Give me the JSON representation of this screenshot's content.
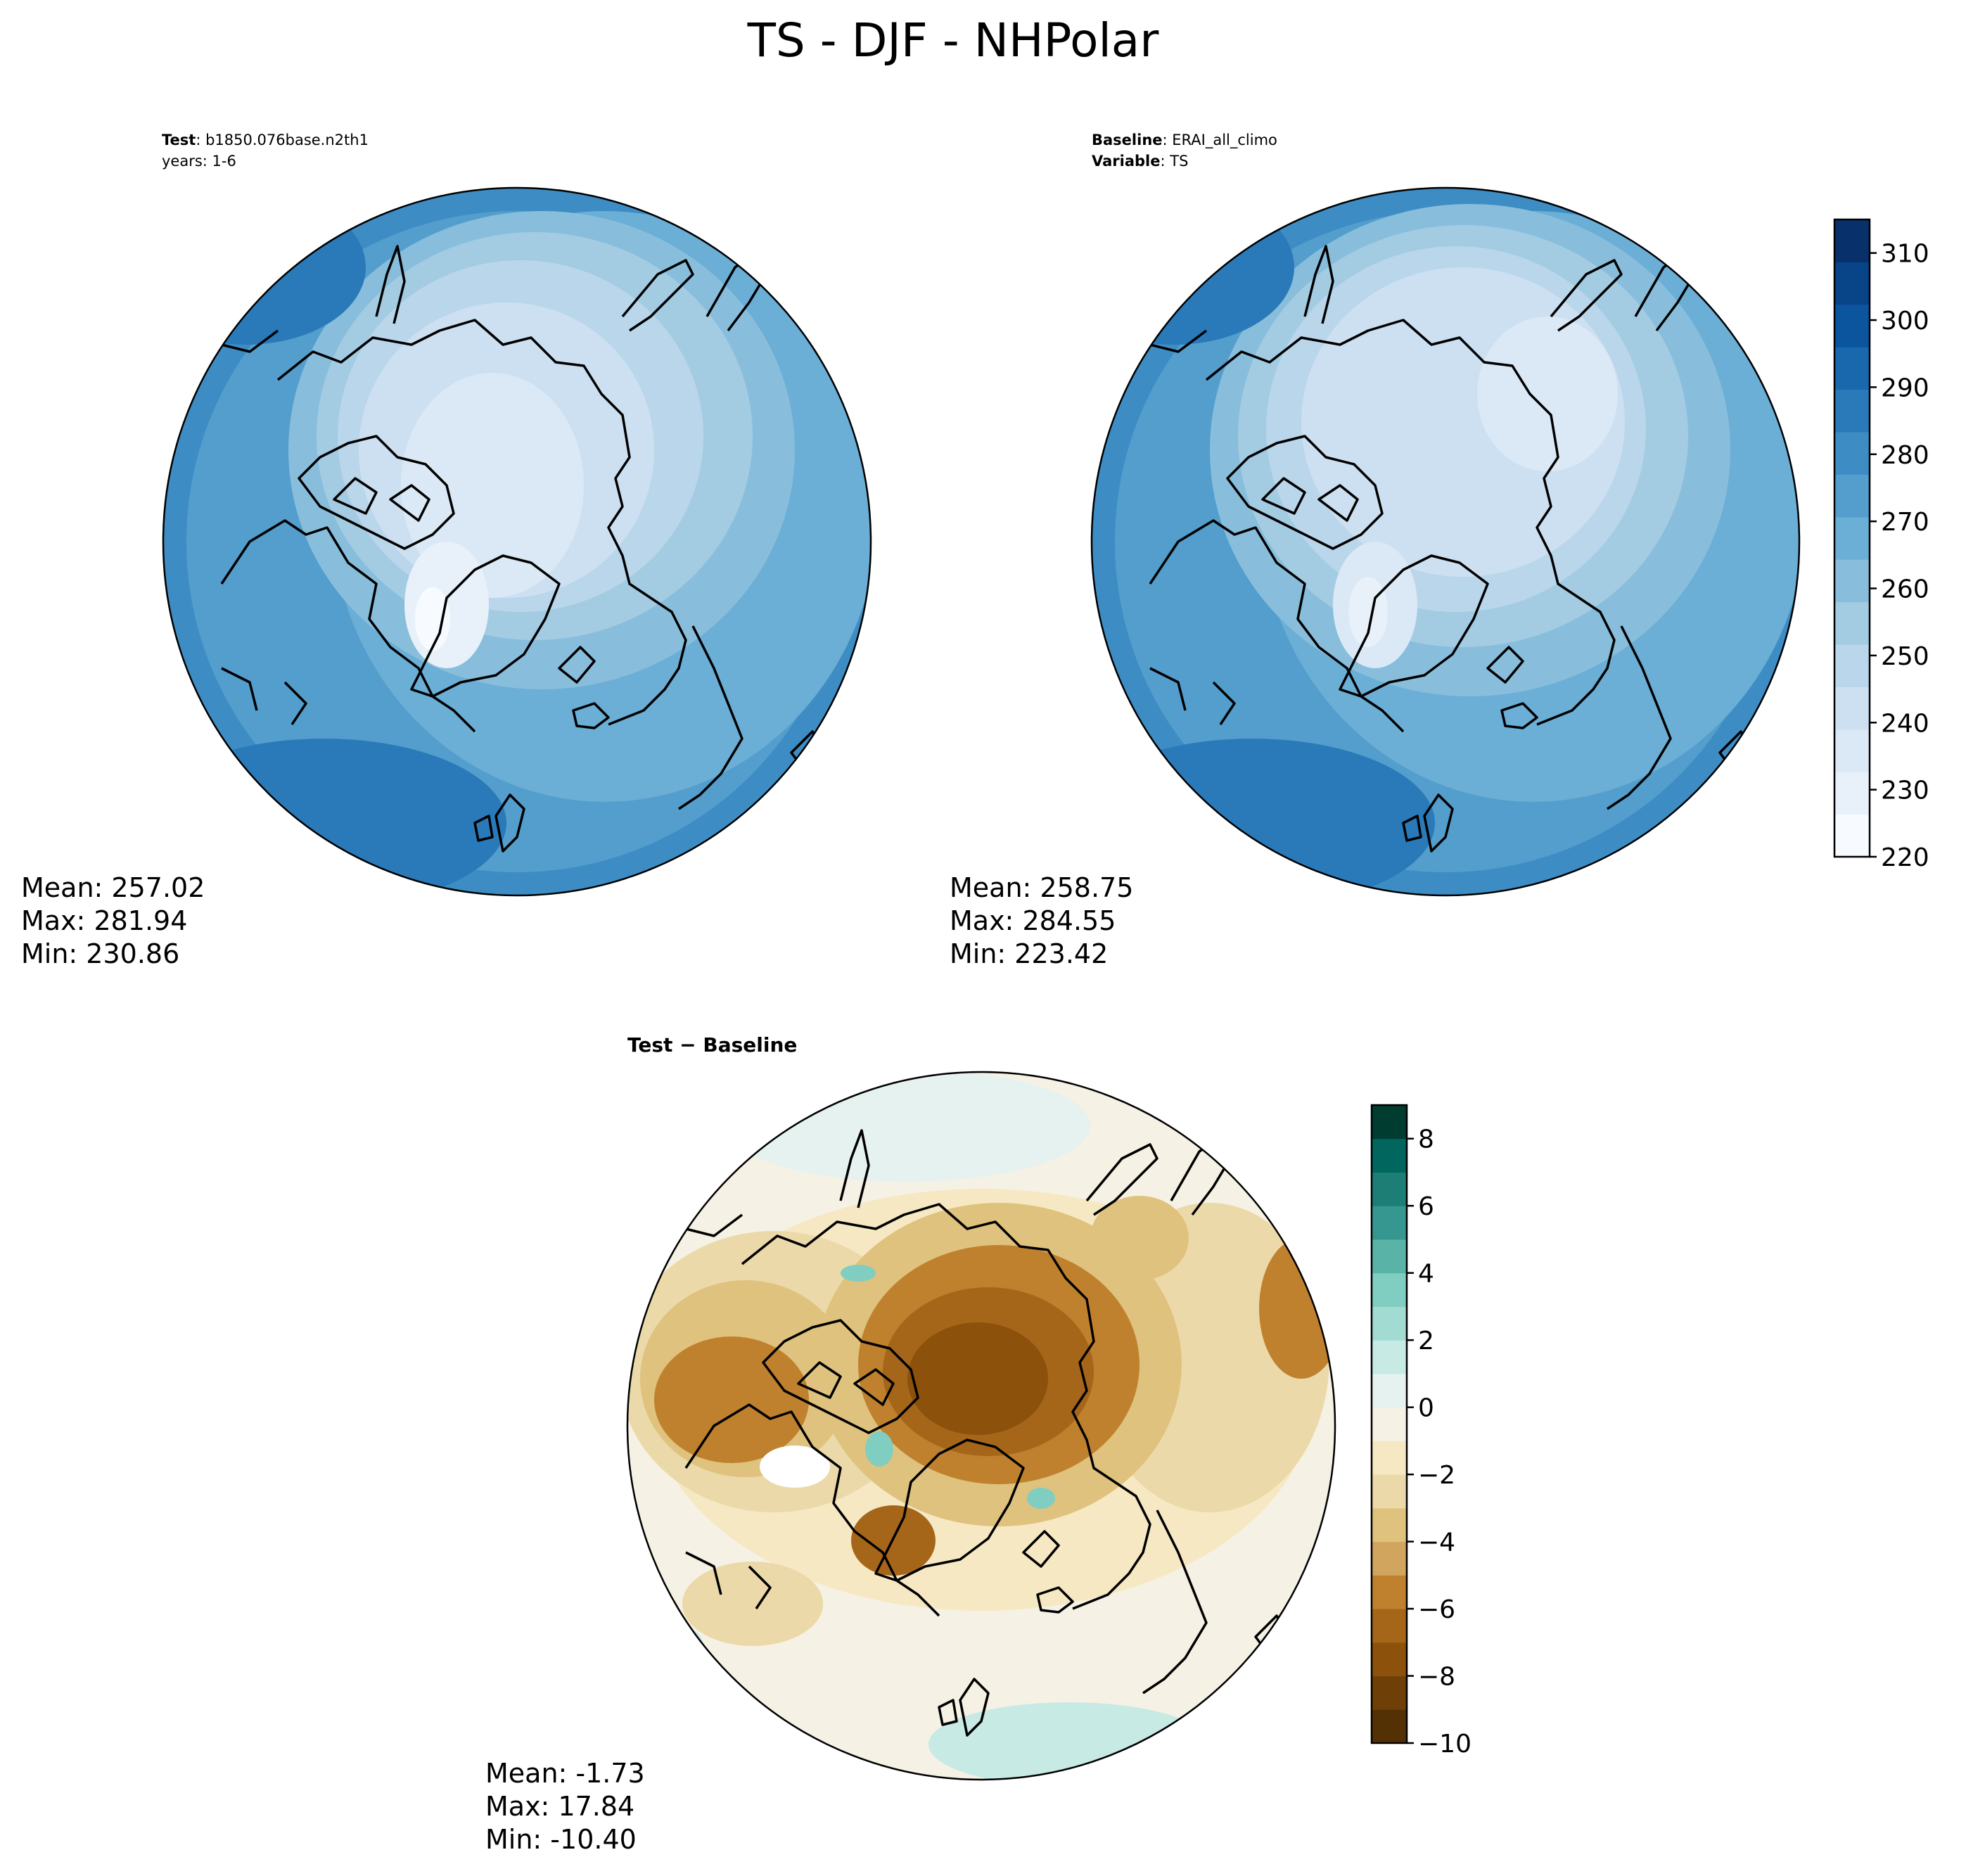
{
  "figure": {
    "title": "TS - DJF - NHPolar"
  },
  "panels": {
    "test": {
      "label_key": "Test",
      "label_value": "b1850.076base.n2th1",
      "label_line2": "years: 1-6",
      "stats": {
        "mean": "Mean: 257.02",
        "max": "Max: 281.94",
        "min": "Min: 230.86"
      }
    },
    "baseline": {
      "label_key": "Baseline",
      "label_value": "ERAI_all_climo",
      "label_key2": "Variable",
      "label_value2": "TS",
      "stats": {
        "mean": "Mean: 258.75",
        "max": "Max: 284.55",
        "min": "Min: 223.42"
      }
    },
    "diff": {
      "title": "Test − Baseline",
      "stats": {
        "mean": "Mean: -1.73",
        "max": "Max: 17.84",
        "min": "Min: -10.40"
      }
    }
  },
  "colorbars": {
    "temperature": {
      "min": 220,
      "max": 315,
      "ticks": [
        "220",
        "230",
        "240",
        "250",
        "260",
        "270",
        "280",
        "290",
        "300",
        "310"
      ],
      "tick_values": [
        220,
        230,
        240,
        250,
        260,
        270,
        280,
        290,
        300,
        310
      ],
      "colors": [
        "#f7fbff",
        "#e8f1fa",
        "#dbe9f6",
        "#cde0f1",
        "#bad6eb",
        "#a3cce3",
        "#88bedc",
        "#6baed6",
        "#539ecd",
        "#3d8dc4",
        "#2a7ab9",
        "#1967ad",
        "#0b559f",
        "#084488",
        "#08306b"
      ]
    },
    "difference": {
      "min": -10,
      "max": 9,
      "ticks": [
        "−10",
        "−8",
        "−6",
        "−4",
        "−2",
        "0",
        "2",
        "4",
        "6",
        "8"
      ],
      "tick_values": [
        -10,
        -8,
        -6,
        -4,
        -2,
        0,
        2,
        4,
        6,
        8
      ],
      "colors": [
        "#543005",
        "#6f3f08",
        "#8c510a",
        "#a5661a",
        "#bf812d",
        "#d2a55e",
        "#dfc27d",
        "#ecd9a9",
        "#f6e8c3",
        "#f5f1e4",
        "#e6f2f0",
        "#c7eae5",
        "#a2dbd1",
        "#80cdc1",
        "#5ab3a7",
        "#35978f",
        "#1c7e75",
        "#01665e",
        "#003c30"
      ]
    }
  }
}
